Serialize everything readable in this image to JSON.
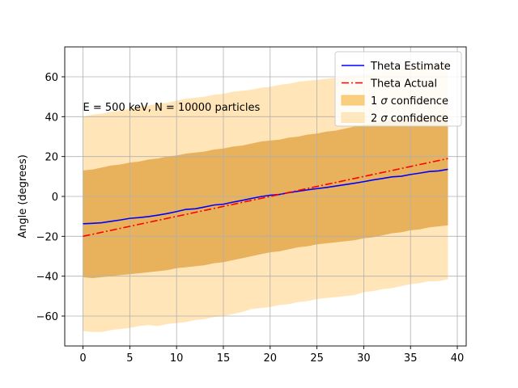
{
  "chart_data": {
    "type": "line",
    "title": "",
    "xlabel": "",
    "ylabel": "Angle (degrees)",
    "xlim": [
      -1.95,
      40.95
    ],
    "ylim": [
      -75,
      75
    ],
    "xticks": [
      0,
      5,
      10,
      15,
      20,
      25,
      30,
      35,
      40
    ],
    "yticks": [
      -60,
      -40,
      -20,
      0,
      20,
      40,
      60
    ],
    "grid": true,
    "legend_position": "top-right",
    "annotation": "E = 500 keV, N = 10000 particles",
    "x": [
      0,
      1,
      2,
      3,
      4,
      5,
      6,
      7,
      8,
      9,
      10,
      11,
      12,
      13,
      14,
      15,
      16,
      17,
      18,
      19,
      20,
      21,
      22,
      23,
      24,
      25,
      26,
      27,
      28,
      29,
      30,
      31,
      32,
      33,
      34,
      35,
      36,
      37,
      38,
      39
    ],
    "series": [
      {
        "name": "Theta Estimate",
        "color": "#0000ff",
        "style": "solid",
        "values": [
          -13.7,
          -13.5,
          -13.2,
          -12.5,
          -11.8,
          -11.0,
          -10.6,
          -10.1,
          -9.4,
          -8.6,
          -7.6,
          -6.5,
          -6.2,
          -5.3,
          -4.3,
          -3.9,
          -2.9,
          -2.0,
          -1.0,
          -0.1,
          0.6,
          1.0,
          1.9,
          2.6,
          3.3,
          3.9,
          4.5,
          5.2,
          5.9,
          6.6,
          7.4,
          8.3,
          9.0,
          9.8,
          10.1,
          11.0,
          11.7,
          12.5,
          12.8,
          13.6
        ]
      },
      {
        "name": "Theta Actual",
        "color": "#ff0000",
        "style": "dashdot",
        "values": [
          -20.0,
          -19.0,
          -18.0,
          -17.0,
          -16.0,
          -15.0,
          -14.0,
          -13.0,
          -12.0,
          -11.0,
          -10.0,
          -9.0,
          -8.0,
          -7.0,
          -6.0,
          -5.0,
          -4.0,
          -3.0,
          -2.0,
          -1.0,
          0.0,
          1.0,
          2.0,
          3.0,
          4.0,
          5.0,
          6.0,
          7.0,
          8.0,
          9.0,
          10.0,
          11.0,
          12.0,
          13.0,
          14.0,
          15.0,
          16.0,
          17.0,
          18.0,
          19.0
        ]
      }
    ],
    "bands": [
      {
        "name": "2 σ confidence",
        "legend_label": "2 $\\sigma$ confidence",
        "color": "#ffe5b8",
        "lower": [
          -67.5,
          -68.0,
          -68.0,
          -67.0,
          -66.5,
          -66.0,
          -65.0,
          -64.5,
          -65.0,
          -64.0,
          -63.5,
          -63.0,
          -62.0,
          -61.5,
          -60.5,
          -60.0,
          -59.0,
          -58.0,
          -56.5,
          -56.0,
          -55.5,
          -54.5,
          -54.0,
          -53.0,
          -52.5,
          -51.5,
          -51.0,
          -50.5,
          -50.0,
          -49.5,
          -48.0,
          -47.5,
          -46.5,
          -46.0,
          -45.0,
          -44.0,
          -43.5,
          -42.5,
          -42.5,
          -41.5
        ],
        "upper": [
          40.0,
          41.0,
          41.5,
          42.5,
          43.0,
          44.0,
          45.0,
          45.5,
          46.5,
          47.0,
          48.0,
          49.0,
          49.5,
          50.0,
          51.0,
          51.5,
          52.5,
          53.0,
          53.5,
          54.5,
          55.0,
          56.0,
          56.5,
          57.5,
          58.0,
          58.5,
          59.0,
          59.5,
          60.5,
          61.0,
          61.5,
          62.0,
          62.5,
          63.5,
          64.5,
          65.0,
          65.5,
          66.0,
          67.0,
          68.0
        ]
      },
      {
        "name": "1 σ confidence",
        "legend_label": "1 $\\sigma$ confidence",
        "color": "#e8b15c",
        "lower": [
          -40.5,
          -41.0,
          -40.5,
          -40.0,
          -39.5,
          -39.0,
          -38.5,
          -38.0,
          -37.5,
          -37.0,
          -36.0,
          -35.5,
          -35.0,
          -34.5,
          -33.5,
          -33.0,
          -32.0,
          -31.0,
          -30.0,
          -29.0,
          -28.0,
          -27.5,
          -26.5,
          -25.5,
          -25.0,
          -24.0,
          -23.5,
          -23.0,
          -22.5,
          -22.0,
          -21.0,
          -20.5,
          -19.5,
          -18.5,
          -18.0,
          -17.0,
          -16.5,
          -15.5,
          -15.0,
          -14.5
        ],
        "upper": [
          13.0,
          13.5,
          14.5,
          15.5,
          16.0,
          17.0,
          17.5,
          18.5,
          19.0,
          20.0,
          20.5,
          21.5,
          22.0,
          22.5,
          23.5,
          24.0,
          25.0,
          25.5,
          26.5,
          27.5,
          28.0,
          28.5,
          29.5,
          30.0,
          31.0,
          31.5,
          32.5,
          33.0,
          34.0,
          35.0,
          36.0,
          36.5,
          37.5,
          38.0,
          39.0,
          39.5,
          40.0,
          40.5,
          41.0,
          41.5
        ]
      }
    ],
    "legend": [
      {
        "label": "Theta Estimate",
        "kind": "line",
        "color": "#0000ff",
        "style": "solid"
      },
      {
        "label": "Theta Actual",
        "kind": "line",
        "color": "#ff0000",
        "style": "dashdot"
      },
      {
        "label": "1 σ confidence",
        "kind": "patch",
        "color": "#f8c462",
        "opacity": 0.8
      },
      {
        "label": "2 σ confidence",
        "kind": "patch",
        "color": "#ffe0a8",
        "opacity": 0.7
      }
    ]
  }
}
